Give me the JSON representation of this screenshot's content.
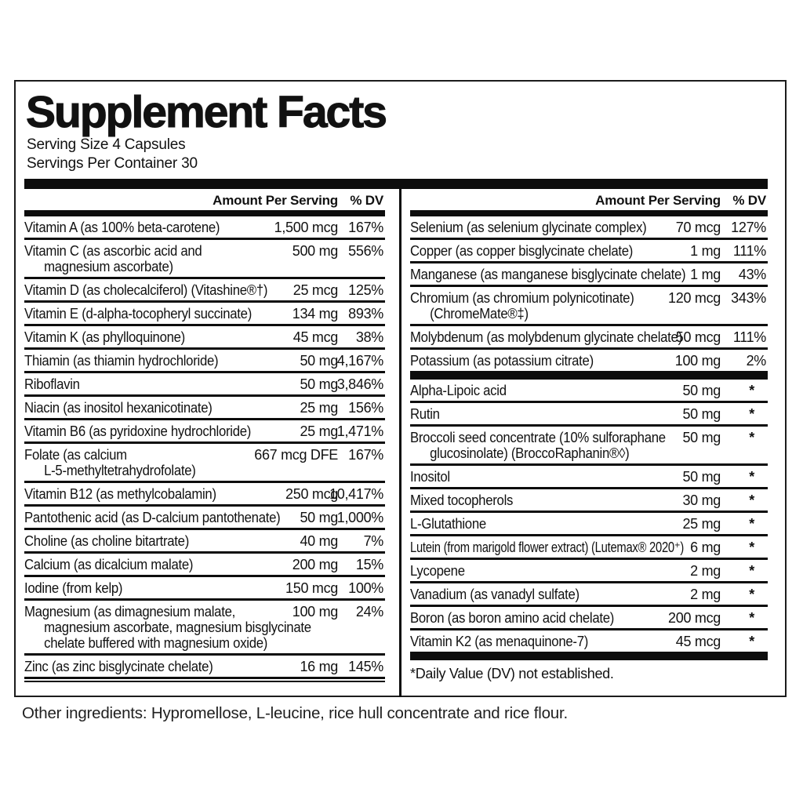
{
  "title": "Supplement Facts",
  "serving_size": "Serving Size 4 Capsules",
  "servings_per_container": "Servings Per Container 30",
  "columns": {
    "amount_header": "Amount Per Serving",
    "dv_header": "% DV"
  },
  "left": {
    "rows": [
      {
        "name": [
          "Vitamin A (as 100% beta-carotene)"
        ],
        "amount": "1,500 mcg",
        "dv": "167%"
      },
      {
        "name": [
          "Vitamin C (as ascorbic acid and",
          "magnesium ascorbate)"
        ],
        "amount": "500 mg",
        "dv": "556%"
      },
      {
        "name": [
          "Vitamin D (as cholecalciferol) (Vitashine®†)"
        ],
        "amount": "25 mcg",
        "dv": "125%"
      },
      {
        "name": [
          "Vitamin E (d-alpha-tocopheryl succinate)"
        ],
        "amount": "134 mg",
        "dv": "893%"
      },
      {
        "name": [
          "Vitamin K (as phylloquinone)"
        ],
        "amount": "45 mcg",
        "dv": "38%"
      },
      {
        "name": [
          "Thiamin (as thiamin hydrochloride)"
        ],
        "amount": "50 mg",
        "dv": "4,167%"
      },
      {
        "name": [
          "Riboflavin"
        ],
        "amount": "50 mg",
        "dv": "3,846%"
      },
      {
        "name": [
          "Niacin (as inositol hexanicotinate)"
        ],
        "amount": "25 mg",
        "dv": "156%"
      },
      {
        "name": [
          "Vitamin B6 (as pyridoxine hydrochloride)"
        ],
        "amount": "25 mg",
        "dv": "1,471%"
      },
      {
        "name": [
          "Folate (as calcium",
          "L-5-methyltetrahydrofolate)"
        ],
        "amount": "667 mcg DFE",
        "dv": "167%"
      },
      {
        "name": [
          "Vitamin B12 (as methylcobalamin)"
        ],
        "amount": "250 mcg",
        "dv": "10,417%"
      },
      {
        "name": [
          "Pantothenic acid (as D-calcium pantothenate)"
        ],
        "amount": "50 mg",
        "dv": "1,000%"
      },
      {
        "name": [
          "Choline (as choline bitartrate)"
        ],
        "amount": "40 mg",
        "dv": "7%"
      },
      {
        "name": [
          "Calcium (as dicalcium malate)"
        ],
        "amount": "200 mg",
        "dv": "15%"
      },
      {
        "name": [
          "Iodine (from kelp)"
        ],
        "amount": "150 mcg",
        "dv": "100%"
      },
      {
        "name": [
          "Magnesium (as dimagnesium malate,",
          "magnesium ascorbate, magnesium bisglycinate",
          "chelate buffered with magnesium oxide)"
        ],
        "amount": "100 mg",
        "dv": "24%"
      },
      {
        "name": [
          "Zinc (as zinc bisglycinate chelate)"
        ],
        "amount": "16 mg",
        "dv": "145%"
      }
    ]
  },
  "right": {
    "section1": [
      {
        "name": [
          "Selenium (as selenium glycinate complex)"
        ],
        "amount": "70 mcg",
        "dv": "127%"
      },
      {
        "name": [
          "Copper (as copper bisglycinate chelate)"
        ],
        "amount": "1 mg",
        "dv": "111%"
      },
      {
        "name": [
          "Manganese (as manganese bisglycinate chelate)"
        ],
        "amount": "1 mg",
        "dv": "43%"
      },
      {
        "name": [
          "Chromium (as chromium polynicotinate)",
          "(ChromeMate®‡)"
        ],
        "amount": "120 mcg",
        "dv": "343%"
      },
      {
        "name": [
          "Molybdenum (as molybdenum glycinate chelate)"
        ],
        "amount": "50 mcg",
        "dv": "111%"
      },
      {
        "name": [
          "Potassium (as potassium citrate)"
        ],
        "amount": "100 mg",
        "dv": "2%"
      }
    ],
    "section2": [
      {
        "name": [
          "Alpha-Lipoic acid"
        ],
        "amount": "50 mg",
        "dv": "*"
      },
      {
        "name": [
          "Rutin"
        ],
        "amount": "50 mg",
        "dv": "*"
      },
      {
        "name": [
          "Broccoli seed concentrate (10% sulforaphane",
          "glucosinolate) (BroccoRaphanin®◊)"
        ],
        "amount": "50 mg",
        "dv": "*"
      },
      {
        "name": [
          "Inositol"
        ],
        "amount": "50 mg",
        "dv": "*"
      },
      {
        "name": [
          "Mixed tocopherols"
        ],
        "amount": "30 mg",
        "dv": "*"
      },
      {
        "name": [
          "L-Glutathione"
        ],
        "amount": "25 mg",
        "dv": "*"
      },
      {
        "name": [
          "Lutein (from marigold flower extract) (Lutemax® 2020⁺)"
        ],
        "amount": "6 mg",
        "dv": "*"
      },
      {
        "name": [
          "Lycopene"
        ],
        "amount": "2 mg",
        "dv": "*"
      },
      {
        "name": [
          "Vanadium (as vanadyl sulfate)"
        ],
        "amount": "2 mg",
        "dv": "*"
      },
      {
        "name": [
          "Boron (as boron amino acid chelate)"
        ],
        "amount": "200 mcg",
        "dv": "*"
      },
      {
        "name": [
          "Vitamin K2 (as menaquinone-7)"
        ],
        "amount": "45 mcg",
        "dv": "*"
      }
    ],
    "footnote": "*Daily Value (DV) not established."
  },
  "other_ingredients": "Other ingredients: Hypromellose, L-leucine, rice hull concentrate and rice flour.",
  "colors": {
    "panel_border": "#1c1c1c",
    "bar": "#0d0d0d",
    "text": "#111111"
  }
}
